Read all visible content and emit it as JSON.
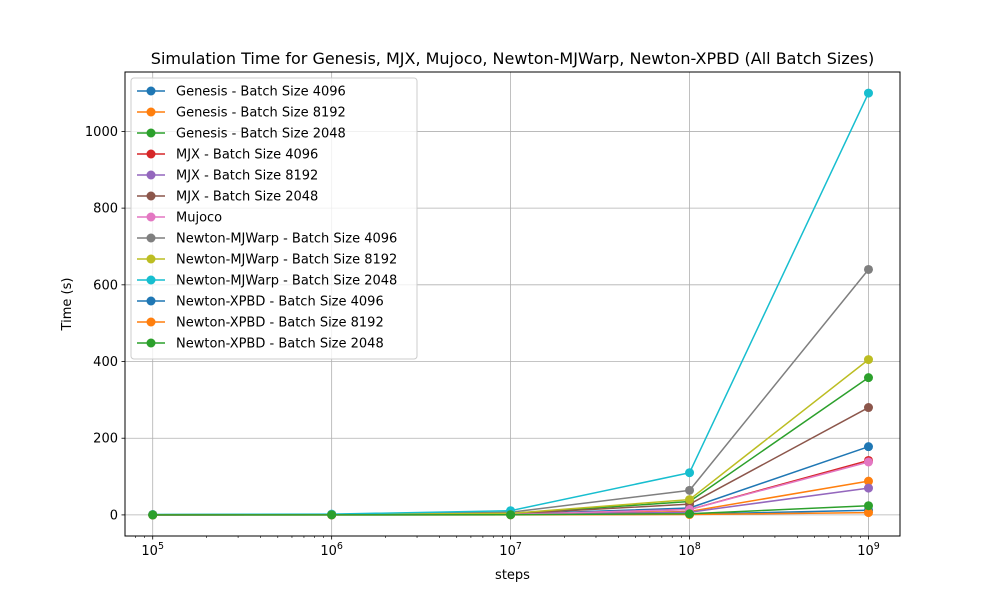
{
  "chart_data": {
    "type": "line",
    "title": "Simulation Time for Genesis, MJX, Mujoco, Newton-MJWarp, Newton-XPBD (All Batch Sizes)",
    "xlabel": "steps",
    "ylabel": "Time (s)",
    "xscale": "log",
    "xlim": [
      70000,
      1500000000
    ],
    "ylim": [
      -55,
      1155
    ],
    "x": [
      100000,
      1000000,
      10000000,
      100000000,
      1000000000
    ],
    "x_tick_labels": [
      {
        "base": "10",
        "exp": "5"
      },
      {
        "base": "10",
        "exp": "6"
      },
      {
        "base": "10",
        "exp": "7"
      },
      {
        "base": "10",
        "exp": "8"
      },
      {
        "base": "10",
        "exp": "9"
      }
    ],
    "y_ticks": [
      0,
      200,
      400,
      600,
      800,
      1000
    ],
    "y_tick_labels": [
      "0",
      "200",
      "400",
      "600",
      "800",
      "1000"
    ],
    "grid": true,
    "legend_position": "top-left",
    "series": [
      {
        "name": "Genesis - Batch Size 4096",
        "color": "#1f77b4",
        "values": [
          0.2,
          0.6,
          2,
          18,
          178
        ]
      },
      {
        "name": "Genesis - Batch Size 8192",
        "color": "#ff7f0e",
        "values": [
          0.1,
          0.4,
          1,
          9,
          88
        ]
      },
      {
        "name": "Genesis - Batch Size 2048",
        "color": "#2ca02c",
        "values": [
          0.3,
          0.9,
          3,
          35,
          358
        ]
      },
      {
        "name": "MJX - Batch Size 4096",
        "color": "#d62728",
        "values": [
          0.15,
          0.5,
          1.5,
          14,
          142
        ]
      },
      {
        "name": "MJX - Batch Size 8192",
        "color": "#9467bd",
        "values": [
          0.1,
          0.3,
          0.8,
          7,
          70
        ]
      },
      {
        "name": "MJX - Batch Size 2048",
        "color": "#8c564b",
        "values": [
          0.3,
          1,
          3,
          28,
          280
        ]
      },
      {
        "name": "Mujoco",
        "color": "#e377c2",
        "values": [
          0.15,
          0.5,
          1.5,
          14,
          138
        ]
      },
      {
        "name": "Newton-MJWarp - Batch Size 4096",
        "color": "#7f7f7f",
        "values": [
          0.6,
          1.5,
          7,
          64,
          640
        ]
      },
      {
        "name": "Newton-MJWarp - Batch Size 8192",
        "color": "#bcbd22",
        "values": [
          0.4,
          1,
          4,
          40,
          405
        ]
      },
      {
        "name": "Newton-MJWarp - Batch Size 2048",
        "color": "#17becf",
        "values": [
          1,
          2,
          11,
          110,
          1100
        ]
      },
      {
        "name": "Newton-XPBD - Batch Size 4096",
        "color": "#1f77b4",
        "values": [
          0.05,
          0.1,
          0.3,
          2,
          12
        ]
      },
      {
        "name": "Newton-XPBD - Batch Size 8192",
        "color": "#ff7f0e",
        "values": [
          0.03,
          0.06,
          0.2,
          1,
          6
        ]
      },
      {
        "name": "Newton-XPBD - Batch Size 2048",
        "color": "#2ca02c",
        "values": [
          0.06,
          0.15,
          0.5,
          3,
          24
        ]
      }
    ]
  }
}
